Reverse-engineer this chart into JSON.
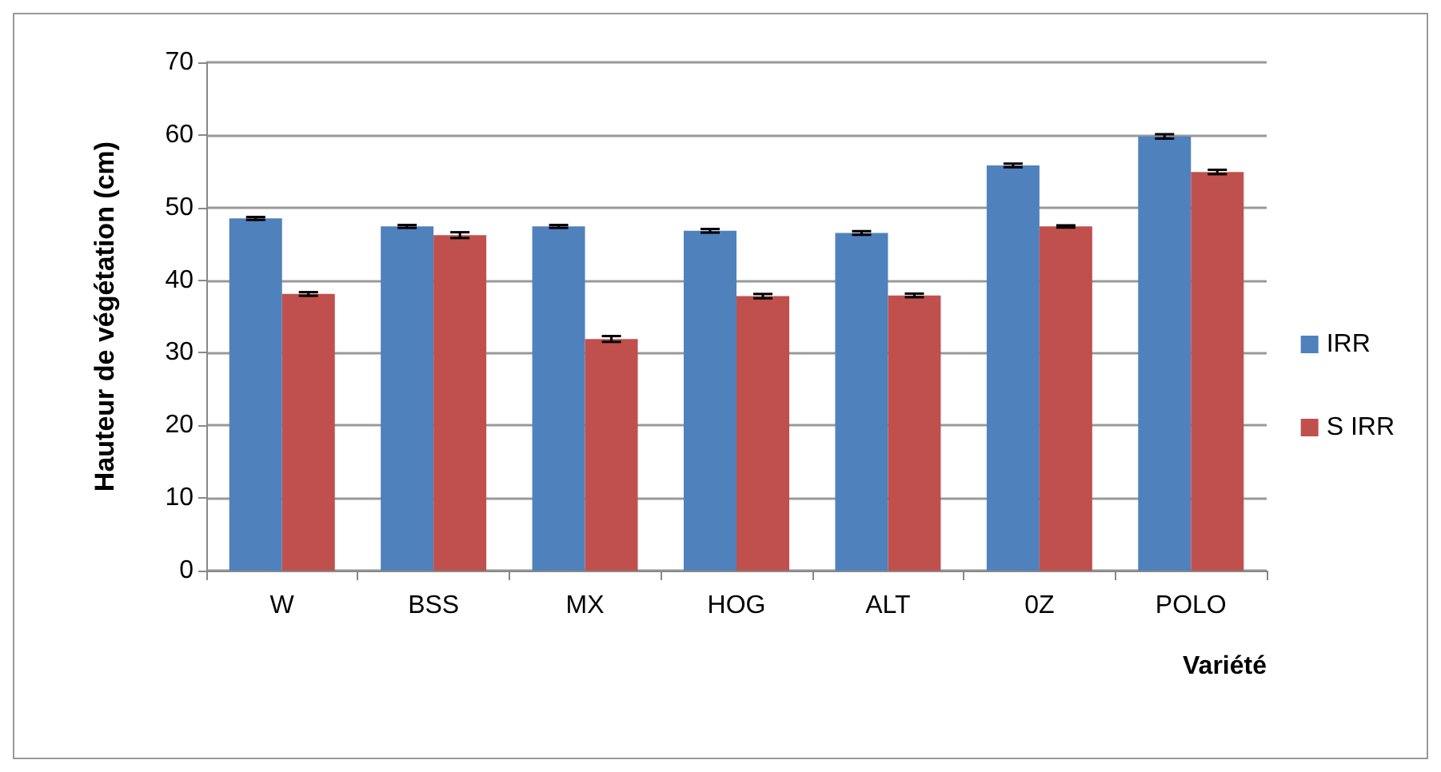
{
  "chart_data": {
    "type": "bar",
    "xlabel": "Variété",
    "ylabel": "Hauteur de végétation (cm)",
    "categories": [
      "W",
      "BSS",
      "MX",
      "HOG",
      "ALT",
      "0Z",
      "POLO"
    ],
    "series": [
      {
        "name": "IRR",
        "color": "#4f81bd",
        "values": [
          48.5,
          47.4,
          47.4,
          46.8,
          46.5,
          55.8,
          59.8
        ],
        "errors": [
          0.2,
          0.2,
          0.2,
          0.25,
          0.25,
          0.25,
          0.3
        ]
      },
      {
        "name": "S IRR",
        "color": "#c0504d",
        "values": [
          38.1,
          46.2,
          31.9,
          37.8,
          37.9,
          47.4,
          54.9
        ],
        "errors": [
          0.25,
          0.4,
          0.4,
          0.3,
          0.25,
          0.15,
          0.3
        ]
      }
    ],
    "ylim": [
      0,
      70
    ],
    "yticks": [
      0,
      10,
      20,
      30,
      40,
      50,
      60,
      70
    ],
    "grid": "y",
    "legend": "right"
  }
}
